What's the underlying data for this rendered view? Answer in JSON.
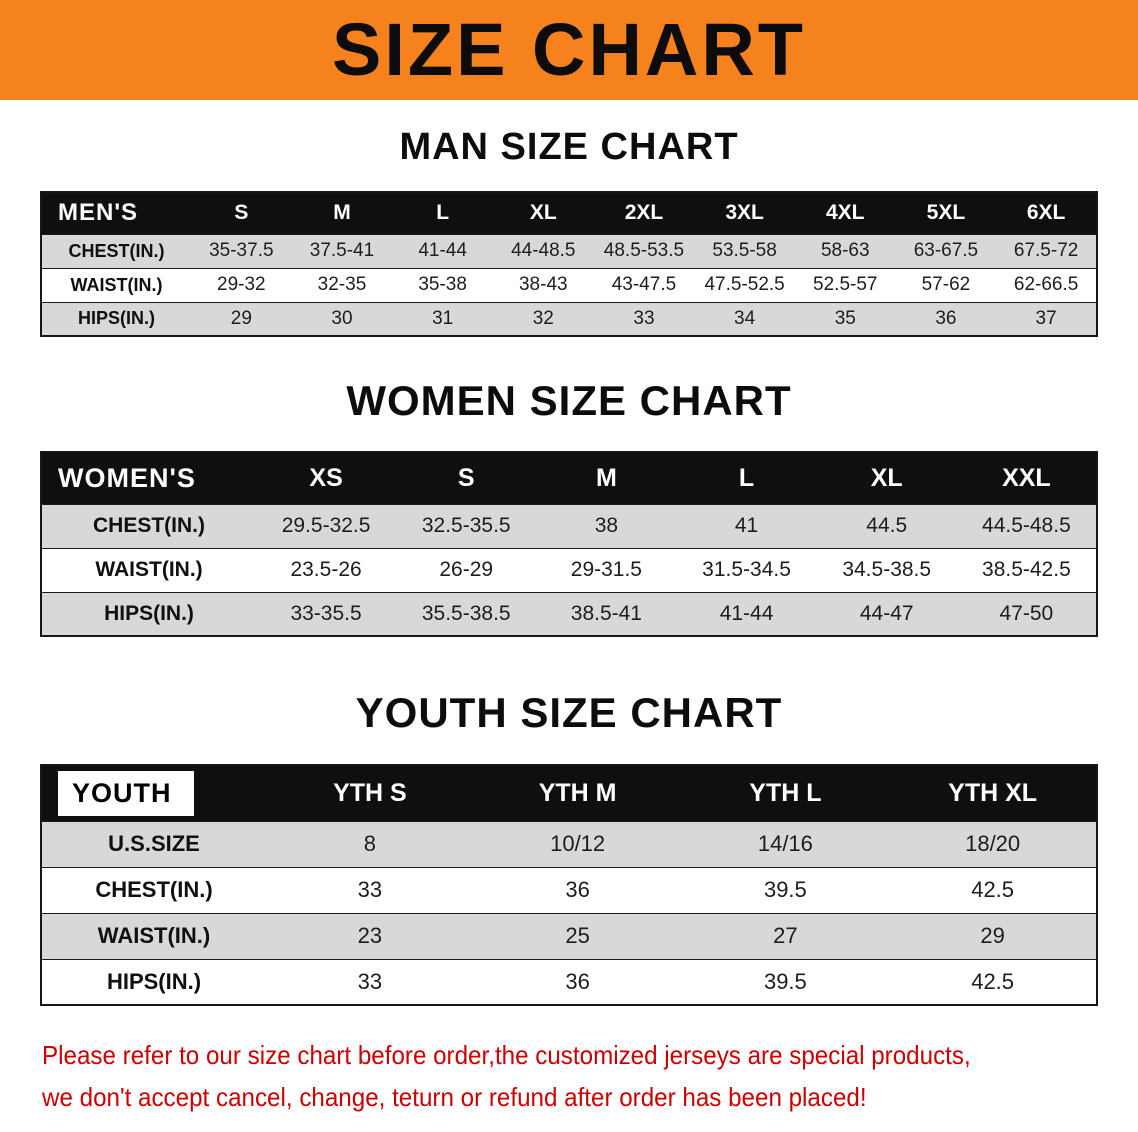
{
  "colors": {
    "banner": "#F6821E",
    "header_bg": "#0F0F0F",
    "row_shade": "#D8D8D8",
    "disclaimer": "#CC0000"
  },
  "banner": {
    "title": "SIZE CHART"
  },
  "men": {
    "heading": "MAN SIZE CHART",
    "header": [
      "MEN'S",
      "S",
      "M",
      "L",
      "XL",
      "2XL",
      "3XL",
      "4XL",
      "5XL",
      "6XL"
    ],
    "rows": [
      [
        "CHEST(IN.)",
        "35-37.5",
        "37.5-41",
        "41-44",
        "44-48.5",
        "48.5-53.5",
        "53.5-58",
        "58-63",
        "63-67.5",
        "67.5-72"
      ],
      [
        "WAIST(IN.)",
        "29-32",
        "32-35",
        "35-38",
        "38-43",
        "43-47.5",
        "47.5-52.5",
        "52.5-57",
        "57-62",
        "62-66.5"
      ],
      [
        "HIPS(IN.)",
        "29",
        "30",
        "31",
        "32",
        "33",
        "34",
        "35",
        "36",
        "37"
      ]
    ]
  },
  "women": {
    "heading": "WOMEN SIZE CHART",
    "header": [
      "WOMEN'S",
      "XS",
      "S",
      "M",
      "L",
      "XL",
      "XXL"
    ],
    "rows": [
      [
        "CHEST(IN.)",
        "29.5-32.5",
        "32.5-35.5",
        "38",
        "41",
        "44.5",
        "44.5-48.5"
      ],
      [
        "WAIST(IN.)",
        "23.5-26",
        "26-29",
        "29-31.5",
        "31.5-34.5",
        "34.5-38.5",
        "38.5-42.5"
      ],
      [
        "HIPS(IN.)",
        "33-35.5",
        "35.5-38.5",
        "38.5-41",
        "41-44",
        "44-47",
        "47-50"
      ]
    ]
  },
  "youth": {
    "heading": "YOUTH SIZE CHART",
    "header": [
      "YOUTH",
      "YTH S",
      "YTH M",
      "YTH L",
      "YTH XL"
    ],
    "rows": [
      [
        "U.S.SIZE",
        "8",
        "10/12",
        "14/16",
        "18/20"
      ],
      [
        "CHEST(IN.)",
        "33",
        "36",
        "39.5",
        "42.5"
      ],
      [
        "WAIST(IN.)",
        "23",
        "25",
        "27",
        "29"
      ],
      [
        "HIPS(IN.)",
        "33",
        "36",
        "39.5",
        "42.5"
      ]
    ]
  },
  "disclaimer": {
    "line1": "Please refer to our size chart before order,the customized jerseys are special products,",
    "line2": "we don't accept cancel, change, teturn or refund after order has been placed!"
  }
}
